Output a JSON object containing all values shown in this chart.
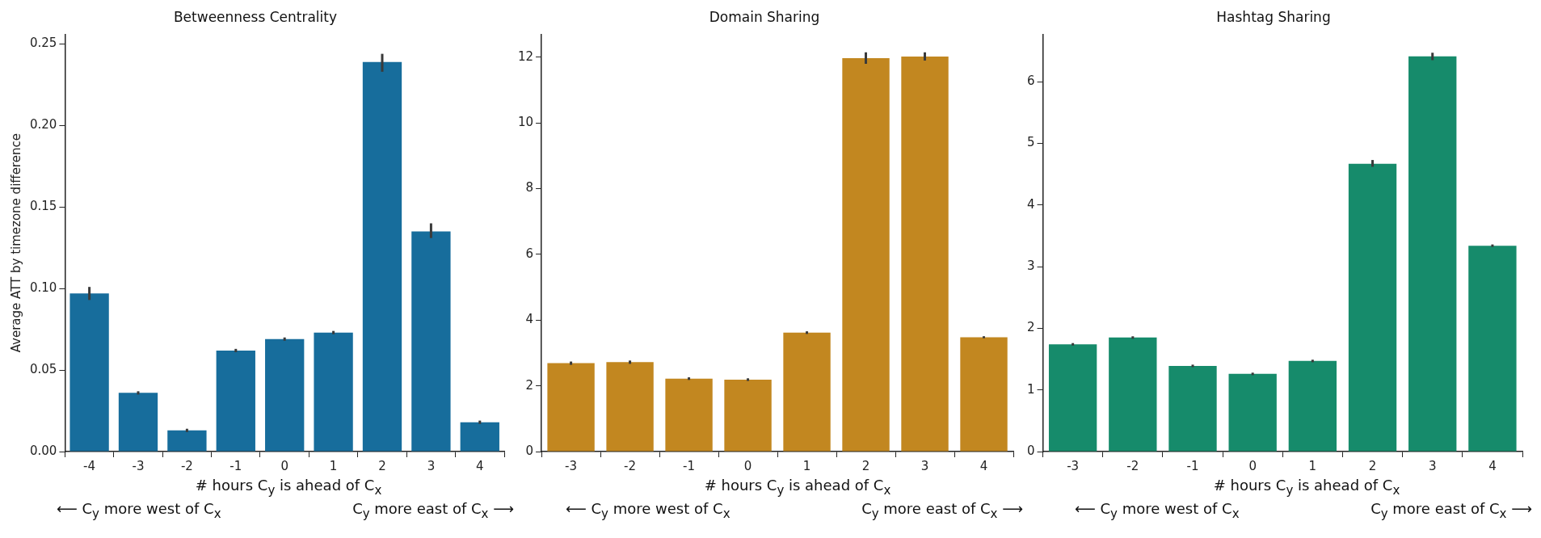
{
  "chart_data": [
    {
      "type": "bar",
      "title": "Betweenness Centrality",
      "ylabel": "Average ATT by timezone difference",
      "xlabel": "# hours C$_{y}$ is ahead of C$_{x}$",
      "categories": [
        "-4",
        "-3",
        "-2",
        "-1",
        "0",
        "1",
        "2",
        "3",
        "4"
      ],
      "values": [
        0.097,
        0.036,
        0.013,
        0.062,
        0.069,
        0.073,
        0.239,
        0.135,
        0.018
      ],
      "errors": [
        [
          0.093,
          0.101
        ],
        [
          0.035,
          0.037
        ],
        [
          0.012,
          0.014
        ],
        [
          0.061,
          0.063
        ],
        [
          0.068,
          0.07
        ],
        [
          0.072,
          0.074
        ],
        [
          0.233,
          0.244
        ],
        [
          0.131,
          0.14
        ],
        [
          0.017,
          0.019
        ]
      ],
      "color": "#176d9c",
      "ylim": [
        0,
        0.256
      ],
      "yticks": [
        {
          "value": 0,
          "label": "0.00"
        },
        {
          "value": 0.05,
          "label": "0.05"
        },
        {
          "value": 0.1,
          "label": "0.10"
        },
        {
          "value": 0.15,
          "label": "0.15"
        },
        {
          "value": 0.2,
          "label": "0.20"
        },
        {
          "value": 0.25,
          "label": "0.25"
        }
      ],
      "grid": false,
      "legend": false,
      "annotations": [
        "⟵ C$_{y}$ more west of C$_{x}$",
        "C$_{y}$ more east of C$_{x}$ ⟶"
      ]
    },
    {
      "type": "bar",
      "title": "Domain Sharing",
      "xlabel": "# hours C$_{y}$ is ahead of C$_{x}$",
      "categories": [
        "-3",
        "-2",
        "-1",
        "0",
        "1",
        "2",
        "3",
        "4"
      ],
      "values": [
        2.69,
        2.72,
        2.22,
        2.19,
        3.62,
        11.97,
        12.02,
        3.48
      ],
      "errors": [
        [
          2.64,
          2.74
        ],
        [
          2.67,
          2.77
        ],
        [
          2.18,
          2.26
        ],
        [
          2.15,
          2.23
        ],
        [
          3.58,
          3.66
        ],
        [
          11.8,
          12.15
        ],
        [
          11.9,
          12.15
        ],
        [
          3.45,
          3.51
        ]
      ],
      "color": "#c28720",
      "ylim": [
        0,
        12.7
      ],
      "yticks": [
        0,
        2,
        4,
        6,
        8,
        10,
        12
      ],
      "grid": false,
      "legend": false,
      "annotations": [
        "⟵ C$_{y}$ more west of C$_{x}$",
        "C$_{y}$ more east of C$_{x}$ ⟶"
      ]
    },
    {
      "type": "bar",
      "title": "Hashtag Sharing",
      "xlabel": "# hours C$_{y}$ is ahead of C$_{x}$",
      "categories": [
        "-3",
        "-2",
        "-1",
        "0",
        "1",
        "2",
        "3",
        "4"
      ],
      "values": [
        1.74,
        1.85,
        1.39,
        1.26,
        1.47,
        4.67,
        6.41,
        3.34
      ],
      "errors": [
        [
          1.72,
          1.76
        ],
        [
          1.83,
          1.87
        ],
        [
          1.37,
          1.41
        ],
        [
          1.24,
          1.28
        ],
        [
          1.45,
          1.49
        ],
        [
          4.62,
          4.73
        ],
        [
          6.35,
          6.47
        ],
        [
          3.32,
          3.36
        ]
      ],
      "color": "#168b6b",
      "ylim": [
        0,
        6.77
      ],
      "yticks": [
        0,
        1,
        2,
        3,
        4,
        5,
        6
      ],
      "grid": false,
      "legend": false,
      "annotations": [
        "⟵ C$_{y}$ more west of C$_{x}$",
        "C$_{y}$ more east of C$_{x}$ ⟶"
      ]
    }
  ]
}
